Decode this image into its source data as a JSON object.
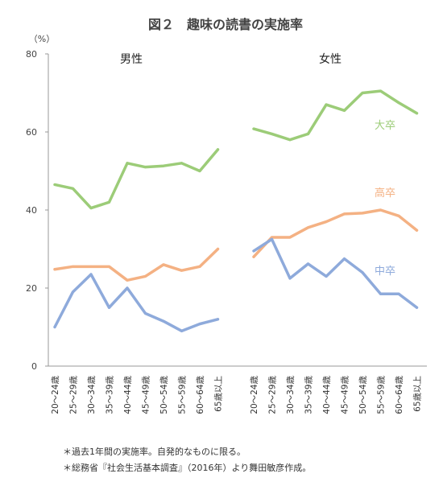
{
  "chart_data": {
    "type": "line",
    "title": "図２　趣味の読書の実施率",
    "y_unit": "（%）",
    "ylim": [
      0,
      80
    ],
    "yticks": [
      0,
      20,
      40,
      60,
      80
    ],
    "grid": false,
    "categories": [
      "20～24歳",
      "25～29歳",
      "30～34歳",
      "35～39歳",
      "40～44歳",
      "45～49歳",
      "50～54歳",
      "55～59歳",
      "60～64歳",
      "65歳以上"
    ],
    "panels": [
      {
        "name": "男性",
        "series": [
          {
            "name": "大卒",
            "color": "#9ccc78",
            "values": [
              46.5,
              45.5,
              40.5,
              42,
              52,
              51,
              51.3,
              52,
              50,
              55.5
            ]
          },
          {
            "name": "高卒",
            "color": "#f4b183",
            "values": [
              24.8,
              25.5,
              25.5,
              25.5,
              22,
              23,
              26,
              24.5,
              25.5,
              30
            ]
          },
          {
            "name": "中卒",
            "color": "#8eaadb",
            "values": [
              10,
              19,
              23.5,
              15,
              20,
              13.5,
              11.5,
              9,
              10.8,
              12
            ]
          }
        ]
      },
      {
        "name": "女性",
        "series": [
          {
            "name": "大卒",
            "color": "#9ccc78",
            "values": [
              60.8,
              59.5,
              58,
              59.5,
              67,
              65.5,
              70,
              70.5,
              67.5,
              64.8
            ]
          },
          {
            "name": "高卒",
            "color": "#f4b183",
            "values": [
              28,
              33,
              33,
              35.5,
              37,
              39,
              39.2,
              40,
              38.5,
              34.8
            ]
          },
          {
            "name": "中卒",
            "color": "#8eaadb",
            "values": [
              29.5,
              32.5,
              22.5,
              26.2,
              23,
              27.5,
              24,
              18.5,
              18.5,
              15
            ]
          }
        ]
      }
    ],
    "series_labels": [
      "大卒",
      "高卒",
      "中卒"
    ],
    "footnotes": [
      "＊過去1年間の実施率。自発的なものに限る。",
      "＊総務省『社会生活基本調査』（2016年）より舞田敏彦作成。"
    ]
  }
}
